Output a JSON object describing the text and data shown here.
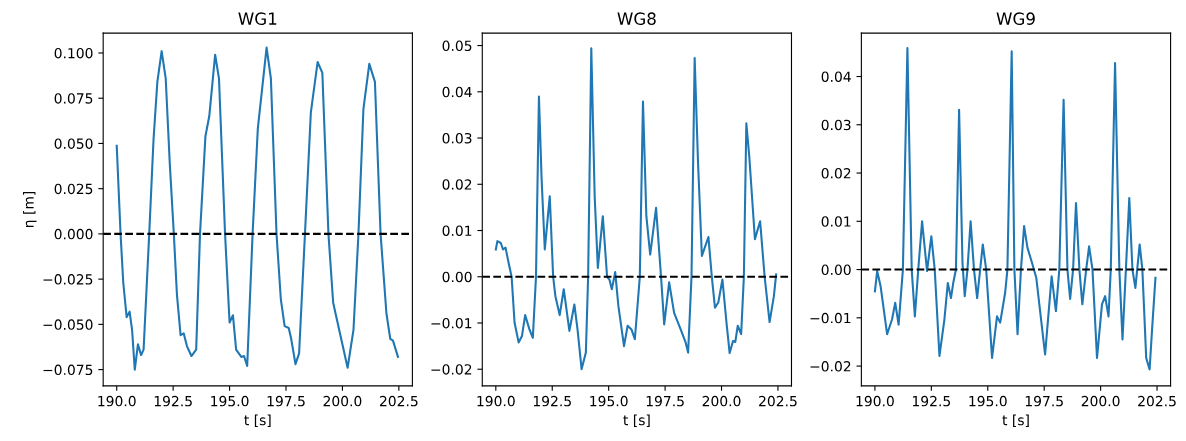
{
  "chart_data": [
    {
      "type": "line",
      "title": "WG1",
      "xlabel": "t [s]",
      "ylabel": "η [m]",
      "xlim": [
        189.4,
        203.1
      ],
      "ylim": [
        -0.084,
        0.111
      ],
      "xticks": [
        {
          "value": 190,
          "label": "190.0"
        },
        {
          "value": 192.5,
          "label": "192.5"
        },
        {
          "value": 195,
          "label": "195.0"
        },
        {
          "value": 197.5,
          "label": "197.5"
        },
        {
          "value": 200,
          "label": "200.0"
        },
        {
          "value": 202.5,
          "label": "202.5"
        }
      ],
      "yticks": [
        {
          "value": -0.075,
          "label": "−0.075"
        },
        {
          "value": -0.05,
          "label": "−0.050"
        },
        {
          "value": -0.025,
          "label": "−0.025"
        },
        {
          "value": 0,
          "label": "0.000"
        },
        {
          "value": 0.025,
          "label": "0.025"
        },
        {
          "value": 0.05,
          "label": "0.050"
        },
        {
          "value": 0.075,
          "label": "0.075"
        },
        {
          "value": 0.1,
          "label": "0.100"
        }
      ],
      "ref_lines": [
        {
          "axis": "y",
          "value": 0,
          "color": "#000000",
          "line_style": "dashed"
        }
      ],
      "grid": false,
      "marker": "none",
      "line_style": "solid",
      "series": [
        {
          "color": "#1f77b4",
          "x": [
            190.0,
            190.17,
            190.29,
            190.44,
            190.57,
            190.68,
            190.8,
            190.94,
            191.08,
            191.19,
            191.44,
            191.63,
            191.8,
            191.99,
            192.17,
            192.35,
            192.53,
            192.67,
            192.83,
            192.97,
            193.11,
            193.31,
            193.52,
            193.69,
            193.93,
            194.1,
            194.36,
            194.53,
            194.8,
            195.0,
            195.15,
            195.29,
            195.52,
            195.64,
            195.78,
            196.02,
            196.25,
            196.64,
            196.83,
            197.08,
            197.27,
            197.44,
            197.62,
            197.73,
            197.92,
            198.08,
            198.34,
            198.6,
            198.9,
            199.11,
            199.38,
            199.59,
            199.91,
            200.23,
            200.49,
            200.71,
            200.93,
            201.19,
            201.44,
            201.69,
            201.95,
            202.12,
            202.24,
            202.46
          ],
          "values": [
            0.0487,
            0,
            -0.027,
            -0.046,
            -0.043,
            -0.053,
            -0.075,
            -0.061,
            -0.067,
            -0.064,
            0,
            0.052,
            0.084,
            0.101,
            0.086,
            0.039,
            0,
            -0.034,
            -0.056,
            -0.055,
            -0.062,
            -0.0675,
            -0.064,
            0,
            0.054,
            0.065,
            0.099,
            0.086,
            0,
            -0.049,
            -0.045,
            -0.064,
            -0.068,
            -0.0675,
            -0.073,
            0,
            0.058,
            0.103,
            0.086,
            0,
            -0.036,
            -0.051,
            -0.052,
            -0.058,
            -0.072,
            -0.066,
            0,
            0.067,
            0.095,
            0.089,
            0,
            -0.038,
            -0.056,
            -0.074,
            -0.053,
            0,
            0.069,
            0.094,
            0.084,
            0,
            -0.044,
            -0.058,
            -0.059,
            -0.068
          ]
        }
      ]
    },
    {
      "type": "line",
      "title": "WG8",
      "xlabel": "t [s]",
      "xlim": [
        189.4,
        203.1
      ],
      "ylim": [
        -0.0236,
        0.0527
      ],
      "xticks": [
        {
          "value": 190,
          "label": "190.0"
        },
        {
          "value": 192.5,
          "label": "192.5"
        },
        {
          "value": 195,
          "label": "195.0"
        },
        {
          "value": 197.5,
          "label": "197.5"
        },
        {
          "value": 200,
          "label": "200.0"
        },
        {
          "value": 202.5,
          "label": "202.5"
        }
      ],
      "yticks": [
        {
          "value": -0.02,
          "label": "−0.02"
        },
        {
          "value": -0.01,
          "label": "−0.01"
        },
        {
          "value": 0,
          "label": "0.00"
        },
        {
          "value": 0.01,
          "label": "0.01"
        },
        {
          "value": 0.02,
          "label": "0.02"
        },
        {
          "value": 0.03,
          "label": "0.03"
        },
        {
          "value": 0.04,
          "label": "0.04"
        },
        {
          "value": 0.05,
          "label": "0.05"
        }
      ],
      "ref_lines": [
        {
          "axis": "y",
          "value": 0,
          "color": "#000000",
          "line_style": "dashed"
        }
      ],
      "grid": false,
      "marker": "none",
      "line_style": "solid",
      "series": [
        {
          "color": "#1f77b4",
          "x": [
            190.0,
            190.07,
            190.22,
            190.32,
            190.43,
            190.58,
            190.7,
            190.83,
            191.01,
            191.16,
            191.3,
            191.49,
            191.64,
            191.78,
            191.91,
            192.03,
            192.17,
            192.39,
            192.54,
            192.64,
            192.83,
            193.01,
            193.26,
            193.48,
            193.62,
            193.8,
            193.99,
            194.09,
            194.23,
            194.38,
            194.52,
            194.74,
            194.93,
            195.04,
            195.14,
            195.29,
            195.43,
            195.68,
            195.84,
            196.01,
            196.16,
            196.38,
            196.52,
            196.67,
            196.84,
            197.1,
            197.32,
            197.46,
            197.68,
            197.9,
            198.19,
            198.41,
            198.52,
            198.67,
            198.81,
            198.96,
            199.13,
            199.42,
            199.57,
            199.71,
            199.86,
            200.04,
            200.22,
            200.36,
            200.51,
            200.61,
            200.72,
            200.87,
            200.99,
            201.1,
            201.23,
            201.48,
            201.71,
            201.91,
            202.13,
            202.32,
            202.42
          ],
          "values": [
            0.0059,
            0.0077,
            0.0073,
            0.0059,
            0.0063,
            0.0027,
            0,
            -0.0099,
            -0.0142,
            -0.0128,
            -0.0083,
            -0.0114,
            -0.0132,
            0,
            0.039,
            0.021,
            0.0059,
            0.0174,
            0,
            -0.0042,
            -0.0083,
            -0.0027,
            -0.0117,
            -0.006,
            -0.0114,
            -0.02,
            -0.0164,
            0,
            0.0494,
            0.0174,
            0.0019,
            0.0131,
            0,
            -0.0007,
            -0.0027,
            0.001,
            -0.0063,
            -0.015,
            -0.0106,
            -0.0114,
            -0.0135,
            0,
            0.0379,
            0.0131,
            0.0048,
            0.0149,
            0,
            -0.0103,
            -0.0012,
            -0.0078,
            -0.0114,
            -0.0142,
            -0.0164,
            0,
            0.0473,
            0.0246,
            0.0045,
            0.0086,
            0,
            -0.0067,
            -0.0055,
            -0.0006,
            -0.0099,
            -0.0165,
            -0.0139,
            -0.0141,
            -0.0106,
            -0.0124,
            0,
            0.0332,
            0.026,
            0.0081,
            0.012,
            0,
            -0.0098,
            -0.0042,
            0.0005
          ]
        }
      ]
    },
    {
      "type": "line",
      "title": "WG9",
      "xlabel": "t [s]",
      "xlim": [
        189.4,
        203.1
      ],
      "ylim": [
        -0.0241,
        0.049
      ],
      "xticks": [
        {
          "value": 190,
          "label": "190.0"
        },
        {
          "value": 192.5,
          "label": "192.5"
        },
        {
          "value": 195,
          "label": "195.0"
        },
        {
          "value": 197.5,
          "label": "197.5"
        },
        {
          "value": 200,
          "label": "200.0"
        },
        {
          "value": 202.5,
          "label": "202.5"
        }
      ],
      "yticks": [
        {
          "value": -0.02,
          "label": "−0.02"
        },
        {
          "value": -0.01,
          "label": "−0.01"
        },
        {
          "value": 0,
          "label": "0.00"
        },
        {
          "value": 0.01,
          "label": "0.01"
        },
        {
          "value": 0.02,
          "label": "0.02"
        },
        {
          "value": 0.03,
          "label": "0.03"
        },
        {
          "value": 0.04,
          "label": "0.04"
        }
      ],
      "ref_lines": [
        {
          "axis": "y",
          "value": 0,
          "color": "#000000",
          "line_style": "dashed"
        }
      ],
      "grid": false,
      "marker": "none",
      "line_style": "solid",
      "series": [
        {
          "color": "#1f77b4",
          "x": [
            190.0,
            190.1,
            190.25,
            190.54,
            190.76,
            190.9,
            191.05,
            191.24,
            191.44,
            191.63,
            191.77,
            191.92,
            192.09,
            192.31,
            192.5,
            192.65,
            192.86,
            193.08,
            193.23,
            193.37,
            193.47,
            193.59,
            193.73,
            193.88,
            193.98,
            194.1,
            194.24,
            194.39,
            194.53,
            194.78,
            194.93,
            195.19,
            195.41,
            195.55,
            195.77,
            195.87,
            196.06,
            196.18,
            196.32,
            196.47,
            196.61,
            196.76,
            196.96,
            197.15,
            197.54,
            197.83,
            198.02,
            198.17,
            198.36,
            198.53,
            198.65,
            198.78,
            198.91,
            199.06,
            199.19,
            199.36,
            199.49,
            199.64,
            199.84,
            200.06,
            200.2,
            200.35,
            200.45,
            200.64,
            200.83,
            200.97,
            201.12,
            201.27,
            201.41,
            201.54,
            201.73,
            201.85,
            202.02,
            202.17,
            202.28,
            202.43
          ],
          "values": [
            -0.0045,
            -0.0003,
            -0.0034,
            -0.0134,
            -0.0103,
            -0.0069,
            -0.0114,
            0,
            0.0459,
            0,
            -0.0097,
            0,
            0.01,
            -0.0003,
            0.0069,
            0,
            -0.0179,
            -0.0103,
            -0.0028,
            -0.0059,
            -0.0028,
            0,
            0.0331,
            0.0014,
            -0.0055,
            0,
            0.01,
            0,
            -0.0059,
            0.0052,
            0,
            -0.0183,
            -0.0097,
            -0.011,
            -0.0048,
            0,
            0.0452,
            0,
            -0.0134,
            0,
            0.009,
            0.0045,
            0.0014,
            -0.0017,
            -0.0176,
            -0.0014,
            -0.0086,
            0,
            0.0352,
            0,
            -0.0061,
            0,
            0.0138,
            0,
            -0.0072,
            0,
            0.0048,
            0,
            -0.0183,
            -0.0072,
            -0.0055,
            -0.0097,
            0,
            0.0428,
            0,
            -0.0145,
            0,
            0.0148,
            0,
            -0.0038,
            0.0052,
            0,
            -0.0183,
            -0.0207,
            -0.0124,
            -0.0017
          ]
        }
      ]
    }
  ]
}
